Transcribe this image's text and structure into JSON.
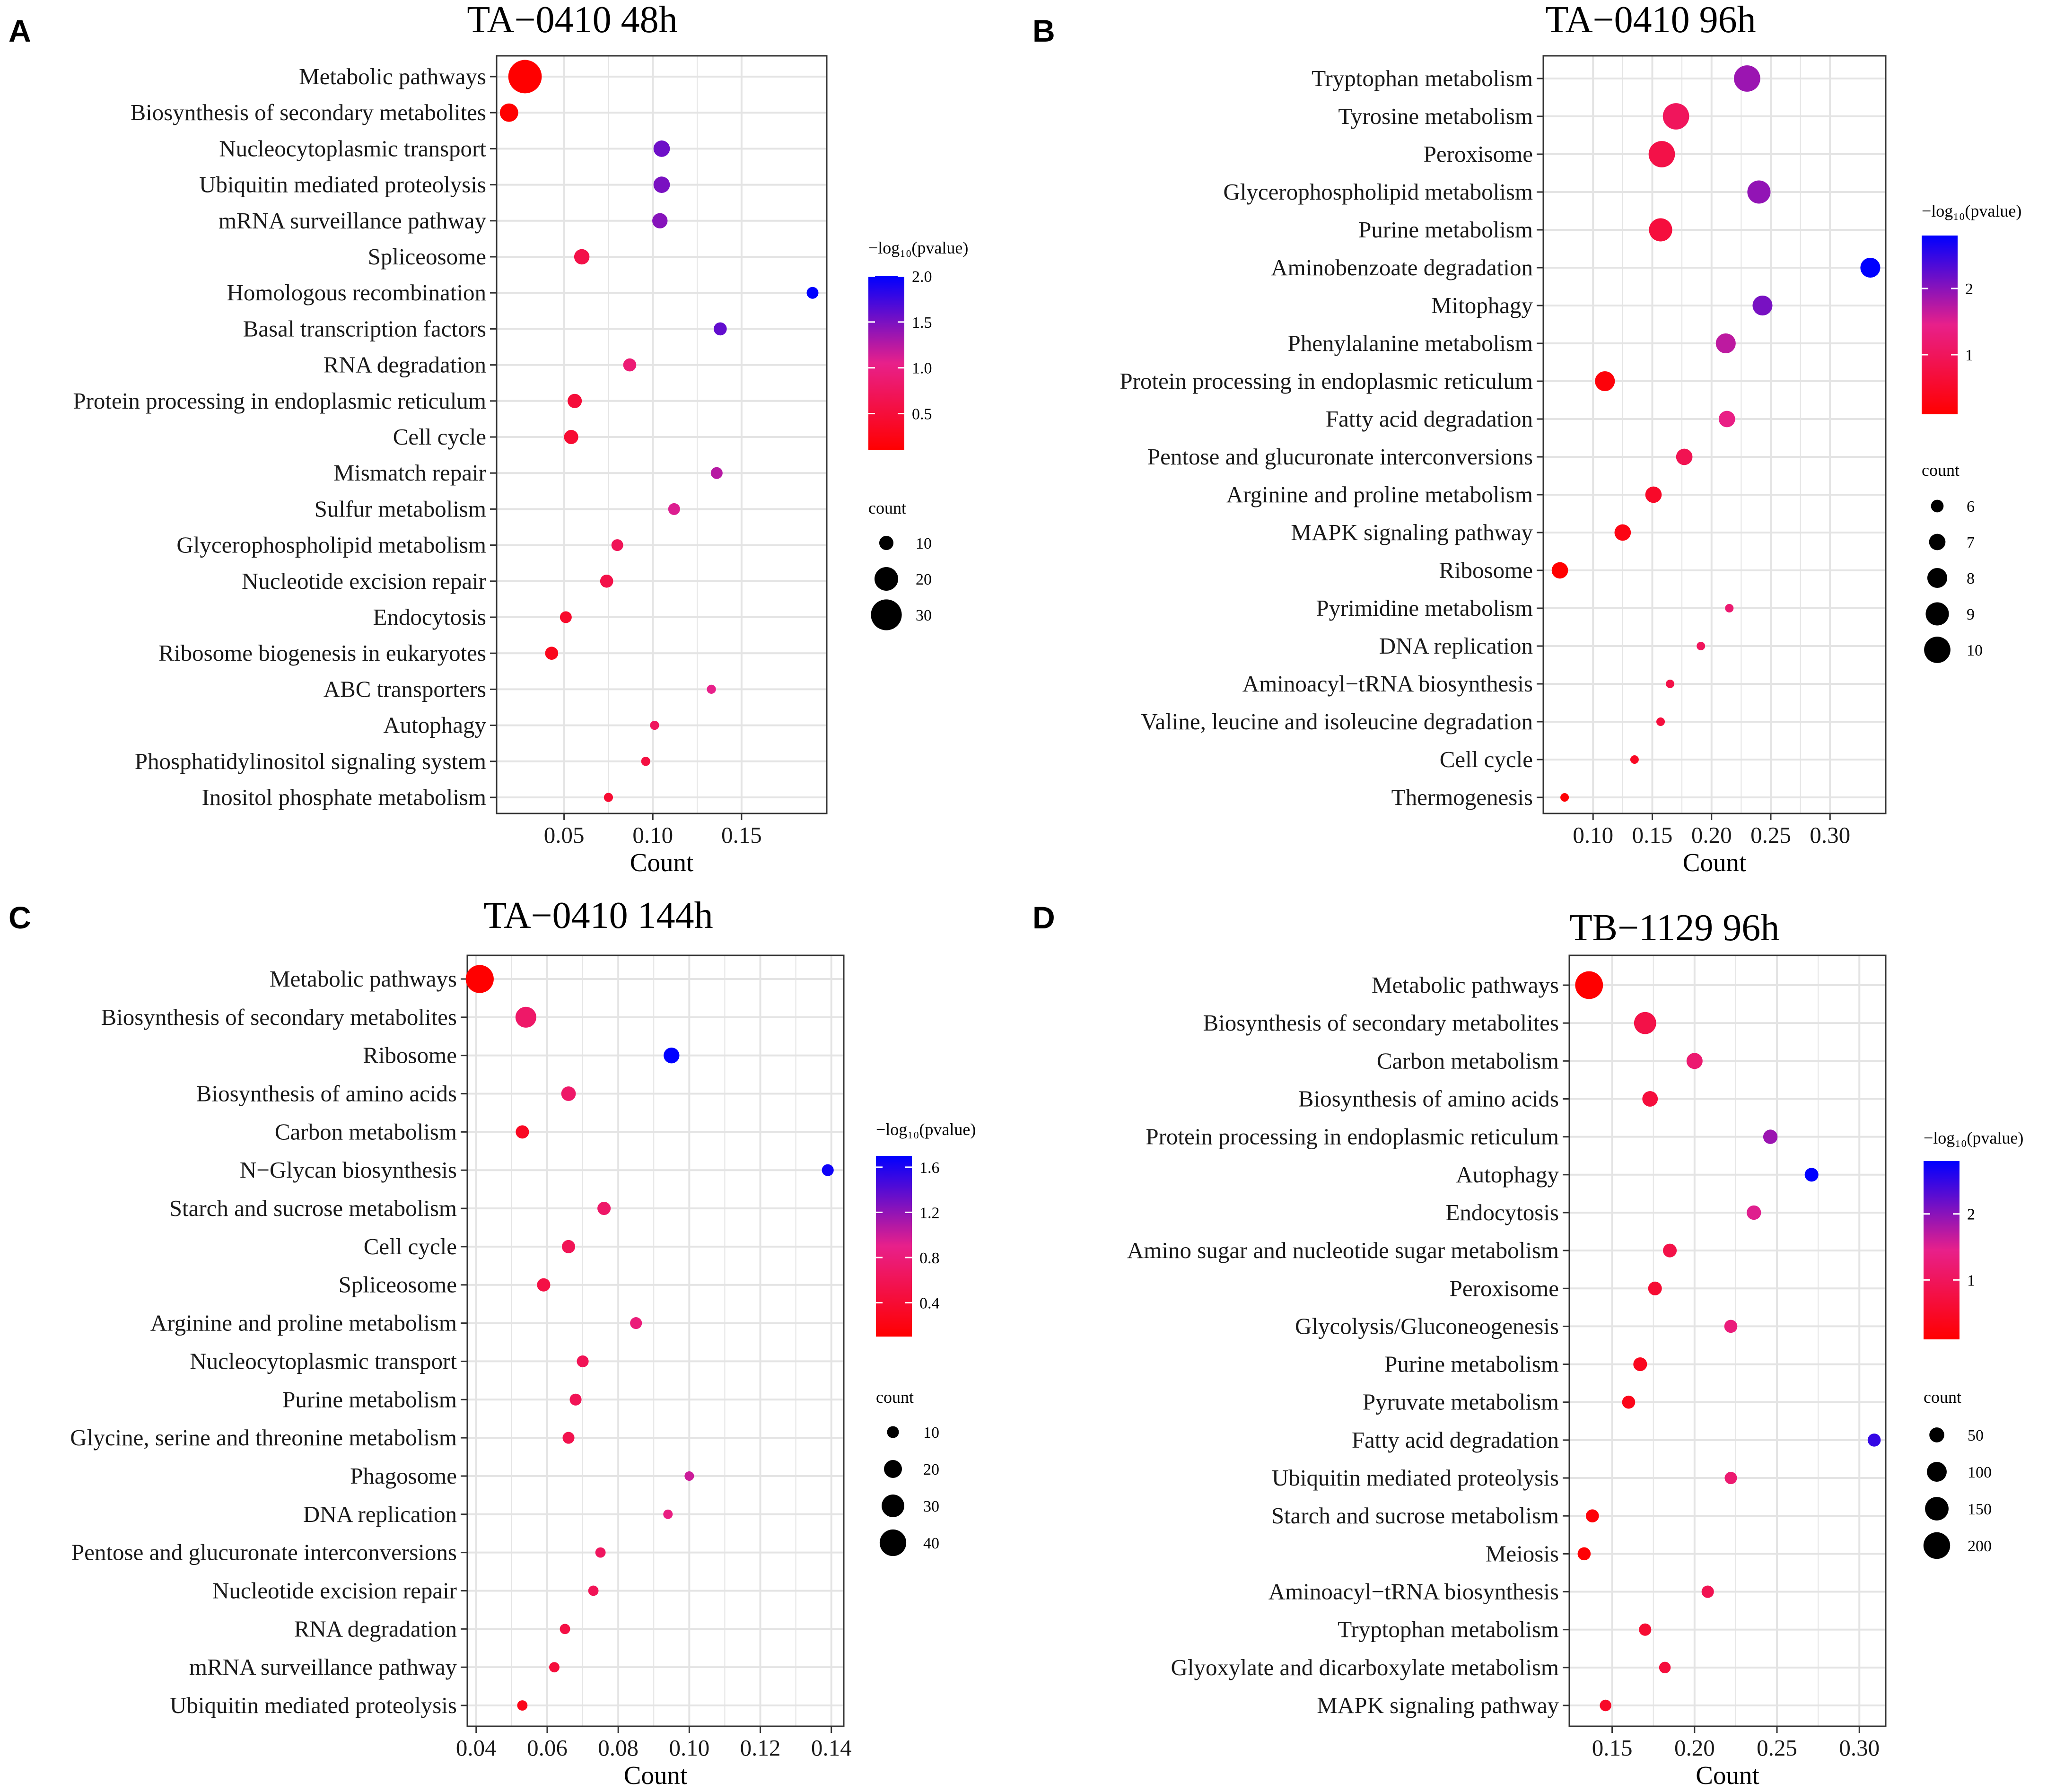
{
  "chart_data": [
    {
      "letter": "A",
      "type": "scatter",
      "title": "TA−0410 48h",
      "xlabel": "Count",
      "xlim": [
        0.012,
        0.198
      ],
      "xticks": [
        0.05,
        0.1,
        0.15
      ],
      "tick_labels": [
        "0.05",
        "0.10",
        "0.15"
      ],
      "color_legend": {
        "title": "−log₁₀(pvalue)",
        "range": [
          0.1,
          2.0
        ],
        "ticks": [
          0.5,
          1.0,
          1.5,
          2.0
        ],
        "tick_labels": [
          "0.5",
          "1.0",
          "1.5",
          "2.0"
        ]
      },
      "size_legend": {
        "title": "count",
        "values": [
          10,
          20,
          30
        ],
        "labels": [
          "10",
          "20",
          "30"
        ],
        "count_range": [
          5,
          35
        ]
      },
      "points": [
        {
          "label": "Metabolic pathways",
          "x": 0.028,
          "count": 34,
          "pvalue": 0.1
        },
        {
          "label": "Biosynthesis of secondary metabolites",
          "x": 0.019,
          "count": 14,
          "pvalue": 0.1
        },
        {
          "label": "Nucleocytoplasmic transport",
          "x": 0.105,
          "count": 12,
          "pvalue": 1.55
        },
        {
          "label": "Ubiquitin mediated proteolysis",
          "x": 0.105,
          "count": 12,
          "pvalue": 1.5
        },
        {
          "label": "mRNA surveillance pathway",
          "x": 0.104,
          "count": 11,
          "pvalue": 1.45
        },
        {
          "label": "Spliceosome",
          "x": 0.06,
          "count": 11,
          "pvalue": 0.6
        },
        {
          "label": "Homologous recombination",
          "x": 0.19,
          "count": 8,
          "pvalue": 2.0
        },
        {
          "label": "Basal transcription factors",
          "x": 0.138,
          "count": 9,
          "pvalue": 1.6
        },
        {
          "label": "RNA degradation",
          "x": 0.087,
          "count": 9,
          "pvalue": 0.9
        },
        {
          "label": "Protein processing in endoplasmic reticulum",
          "x": 0.056,
          "count": 10,
          "pvalue": 0.5
        },
        {
          "label": "Cell cycle",
          "x": 0.054,
          "count": 10,
          "pvalue": 0.45
        },
        {
          "label": "Mismatch repair",
          "x": 0.136,
          "count": 8,
          "pvalue": 1.25
        },
        {
          "label": "Sulfur metabolism",
          "x": 0.112,
          "count": 8,
          "pvalue": 1.1
        },
        {
          "label": "Glycerophospholipid metabolism",
          "x": 0.08,
          "count": 8,
          "pvalue": 0.7
        },
        {
          "label": "Nucleotide excision repair",
          "x": 0.074,
          "count": 9,
          "pvalue": 0.6
        },
        {
          "label": "Endocytosis",
          "x": 0.051,
          "count": 8,
          "pvalue": 0.4
        },
        {
          "label": "Ribosome biogenesis in eukaryotes",
          "x": 0.043,
          "count": 9,
          "pvalue": 0.3
        },
        {
          "label": "ABC transporters",
          "x": 0.133,
          "count": 6,
          "pvalue": 1.05
        },
        {
          "label": "Autophagy",
          "x": 0.101,
          "count": 6,
          "pvalue": 0.75
        },
        {
          "label": "Phosphatidylinositol signaling system",
          "x": 0.096,
          "count": 6,
          "pvalue": 0.55
        },
        {
          "label": "Inositol phosphate metabolism",
          "x": 0.075,
          "count": 6,
          "pvalue": 0.45
        }
      ]
    },
    {
      "letter": "B",
      "type": "scatter",
      "title": "TA−0410 96h",
      "xlabel": "Count",
      "xlim": [
        0.058,
        0.347
      ],
      "xticks": [
        0.1,
        0.15,
        0.2,
        0.25,
        0.3
      ],
      "tick_labels": [
        "0.10",
        "0.15",
        "0.20",
        "0.25",
        "0.30"
      ],
      "color_legend": {
        "title": "−log₁₀(pvalue)",
        "range": [
          0.1,
          2.8
        ],
        "ticks": [
          1,
          2
        ],
        "tick_labels": [
          "1",
          "2"
        ]
      },
      "size_legend": {
        "title": "count",
        "values": [
          6,
          7,
          8,
          9,
          10
        ],
        "labels": [
          "6",
          "7",
          "8",
          "9",
          "10"
        ],
        "count_range": [
          5,
          11
        ]
      },
      "points": [
        {
          "label": "Tryptophan metabolism",
          "x": 0.23,
          "count": 10,
          "pvalue": 1.9
        },
        {
          "label": "Tyrosine metabolism",
          "x": 0.17,
          "count": 10,
          "pvalue": 1.0
        },
        {
          "label": "Peroxisome",
          "x": 0.158,
          "count": 10,
          "pvalue": 0.8
        },
        {
          "label": "Glycerophospholipid metabolism",
          "x": 0.24,
          "count": 9,
          "pvalue": 1.95
        },
        {
          "label": "Purine metabolism",
          "x": 0.157,
          "count": 9,
          "pvalue": 0.7
        },
        {
          "label": "Aminobenzoate degradation",
          "x": 0.334,
          "count": 8,
          "pvalue": 2.8
        },
        {
          "label": "Mitophagy",
          "x": 0.243,
          "count": 8,
          "pvalue": 2.1
        },
        {
          "label": "Phenylalanine metabolism",
          "x": 0.212,
          "count": 8,
          "pvalue": 1.7
        },
        {
          "label": "Protein processing in endoplasmic reticulum",
          "x": 0.11,
          "count": 8,
          "pvalue": 0.2
        },
        {
          "label": "Fatty acid degradation",
          "x": 0.213,
          "count": 7,
          "pvalue": 1.4
        },
        {
          "label": "Pentose and glucuronate interconversions",
          "x": 0.177,
          "count": 7,
          "pvalue": 0.9
        },
        {
          "label": "Arginine and proline metabolism",
          "x": 0.151,
          "count": 7,
          "pvalue": 0.5
        },
        {
          "label": "MAPK signaling pathway",
          "x": 0.125,
          "count": 7,
          "pvalue": 0.3
        },
        {
          "label": "Ribosome",
          "x": 0.072,
          "count": 7,
          "pvalue": 0.05
        },
        {
          "label": "Pyrimidine metabolism",
          "x": 0.215,
          "count": 5,
          "pvalue": 1.2
        },
        {
          "label": "DNA replication",
          "x": 0.191,
          "count": 5,
          "pvalue": 1.0
        },
        {
          "label": "Aminoacyl−tRNA biosynthesis",
          "x": 0.165,
          "count": 5,
          "pvalue": 0.8
        },
        {
          "label": "Valine, leucine and isoleucine degradation",
          "x": 0.157,
          "count": 5,
          "pvalue": 0.7
        },
        {
          "label": "Cell cycle",
          "x": 0.135,
          "count": 5,
          "pvalue": 0.45
        },
        {
          "label": "Thermogenesis",
          "x": 0.076,
          "count": 5,
          "pvalue": 0.15
        }
      ]
    },
    {
      "letter": "C",
      "type": "scatter",
      "title": "TA−0410 144h",
      "xlabel": "Count",
      "xlim": [
        0.0375,
        0.1435
      ],
      "xticks": [
        0.04,
        0.06,
        0.08,
        0.1,
        0.12,
        0.14
      ],
      "tick_labels": [
        "0.04",
        "0.06",
        "0.08",
        "0.10",
        "0.12",
        "0.14"
      ],
      "color_legend": {
        "title": "−log₁₀(pvalue)",
        "range": [
          0.1,
          1.7
        ],
        "ticks": [
          0.4,
          0.8,
          1.2,
          1.6
        ],
        "tick_labels": [
          "0.4",
          "0.8",
          "1.2",
          "1.6"
        ]
      },
      "size_legend": {
        "title": "count",
        "values": [
          10,
          20,
          30,
          40
        ],
        "labels": [
          "10",
          "20",
          "30",
          "40"
        ],
        "count_range": [
          5,
          45
        ]
      },
      "points": [
        {
          "label": "Metabolic pathways",
          "x": 0.041,
          "count": 44,
          "pvalue": 0.1
        },
        {
          "label": "Biosynthesis of secondary metabolites",
          "x": 0.054,
          "count": 26,
          "pvalue": 0.7
        },
        {
          "label": "Ribosome",
          "x": 0.095,
          "count": 16,
          "pvalue": 1.7
        },
        {
          "label": "Biosynthesis of amino acids",
          "x": 0.066,
          "count": 14,
          "pvalue": 0.7
        },
        {
          "label": "Carbon metabolism",
          "x": 0.053,
          "count": 12,
          "pvalue": 0.3
        },
        {
          "label": "N−Glycan biosynthesis",
          "x": 0.139,
          "count": 10,
          "pvalue": 1.65
        },
        {
          "label": "Starch and sucrose metabolism",
          "x": 0.076,
          "count": 12,
          "pvalue": 0.7
        },
        {
          "label": "Cell cycle",
          "x": 0.066,
          "count": 12,
          "pvalue": 0.6
        },
        {
          "label": "Spliceosome",
          "x": 0.059,
          "count": 12,
          "pvalue": 0.5
        },
        {
          "label": "Arginine and proline metabolism",
          "x": 0.085,
          "count": 10,
          "pvalue": 0.8
        },
        {
          "label": "Nucleocytoplasmic transport",
          "x": 0.07,
          "count": 10,
          "pvalue": 0.6
        },
        {
          "label": "Purine metabolism",
          "x": 0.068,
          "count": 10,
          "pvalue": 0.6
        },
        {
          "label": "Glycine, serine and threonine metabolism",
          "x": 0.066,
          "count": 10,
          "pvalue": 0.55
        },
        {
          "label": "Phagosome",
          "x": 0.1,
          "count": 7,
          "pvalue": 1.0
        },
        {
          "label": "DNA replication",
          "x": 0.094,
          "count": 7,
          "pvalue": 0.85
        },
        {
          "label": "Pentose and glucuronate interconversions",
          "x": 0.075,
          "count": 8,
          "pvalue": 0.65
        },
        {
          "label": "Nucleotide excision repair",
          "x": 0.073,
          "count": 8,
          "pvalue": 0.6
        },
        {
          "label": "RNA degradation",
          "x": 0.065,
          "count": 8,
          "pvalue": 0.5
        },
        {
          "label": "mRNA surveillance pathway",
          "x": 0.062,
          "count": 8,
          "pvalue": 0.45
        },
        {
          "label": "Ubiquitin mediated proteolysis",
          "x": 0.053,
          "count": 8,
          "pvalue": 0.25
        }
      ]
    },
    {
      "letter": "D",
      "type": "scatter",
      "title": "TB−1129 96h",
      "xlabel": "Count",
      "xlim": [
        0.124,
        0.316
      ],
      "xticks": [
        0.15,
        0.2,
        0.25,
        0.3
      ],
      "tick_labels": [
        "0.15",
        "0.20",
        "0.25",
        "0.30"
      ],
      "color_legend": {
        "title": "−log₁₀(pvalue)",
        "range": [
          0.1,
          2.8
        ],
        "ticks": [
          1,
          2
        ],
        "tick_labels": [
          "1",
          "2"
        ]
      },
      "size_legend": {
        "title": "count",
        "values": [
          50,
          100,
          150,
          200
        ],
        "labels": [
          "50",
          "100",
          "150",
          "200"
        ],
        "count_range": [
          10,
          230
        ]
      },
      "points": [
        {
          "label": "Metabolic pathways",
          "x": 0.136,
          "count": 220,
          "pvalue": 0.1
        },
        {
          "label": "Biosynthesis of secondary metabolites",
          "x": 0.17,
          "count": 130,
          "pvalue": 0.8
        },
        {
          "label": "Carbon metabolism",
          "x": 0.2,
          "count": 60,
          "pvalue": 1.2
        },
        {
          "label": "Biosynthesis of amino acids",
          "x": 0.173,
          "count": 55,
          "pvalue": 0.7
        },
        {
          "label": "Protein processing in endoplasmic reticulum",
          "x": 0.246,
          "count": 45,
          "pvalue": 1.9
        },
        {
          "label": "Autophagy",
          "x": 0.271,
          "count": 40,
          "pvalue": 2.8
        },
        {
          "label": "Endocytosis",
          "x": 0.236,
          "count": 45,
          "pvalue": 1.5
        },
        {
          "label": "Amino sugar and nucleotide sugar metabolism",
          "x": 0.185,
          "count": 40,
          "pvalue": 0.8
        },
        {
          "label": "Peroxisome",
          "x": 0.176,
          "count": 40,
          "pvalue": 0.6
        },
        {
          "label": "Glycolysis/Gluconeogenesis",
          "x": 0.222,
          "count": 35,
          "pvalue": 1.3
        },
        {
          "label": "Purine metabolism",
          "x": 0.167,
          "count": 40,
          "pvalue": 0.4
        },
        {
          "label": "Pyruvate metabolism",
          "x": 0.16,
          "count": 35,
          "pvalue": 0.35
        },
        {
          "label": "Fatty acid degradation",
          "x": 0.309,
          "count": 35,
          "pvalue": 2.5
        },
        {
          "label": "Ubiquitin mediated proteolysis",
          "x": 0.222,
          "count": 30,
          "pvalue": 1.2
        },
        {
          "label": "Starch and sucrose metabolism",
          "x": 0.138,
          "count": 35,
          "pvalue": 0.2
        },
        {
          "label": "Meiosis",
          "x": 0.133,
          "count": 35,
          "pvalue": 0.15
        },
        {
          "label": "Aminoacyl−tRNA biosynthesis",
          "x": 0.208,
          "count": 30,
          "pvalue": 0.9
        },
        {
          "label": "Tryptophan metabolism",
          "x": 0.17,
          "count": 30,
          "pvalue": 0.6
        },
        {
          "label": "Glyoxylate and dicarboxylate metabolism",
          "x": 0.182,
          "count": 25,
          "pvalue": 0.7
        },
        {
          "label": "MAPK signaling pathway",
          "x": 0.146,
          "count": 25,
          "pvalue": 0.5
        }
      ]
    }
  ],
  "colors": {
    "low": "#ff0000",
    "mid": "#e8208a",
    "high": "#0000ff",
    "grid": "#e4e4e4",
    "frame": "#333333"
  }
}
